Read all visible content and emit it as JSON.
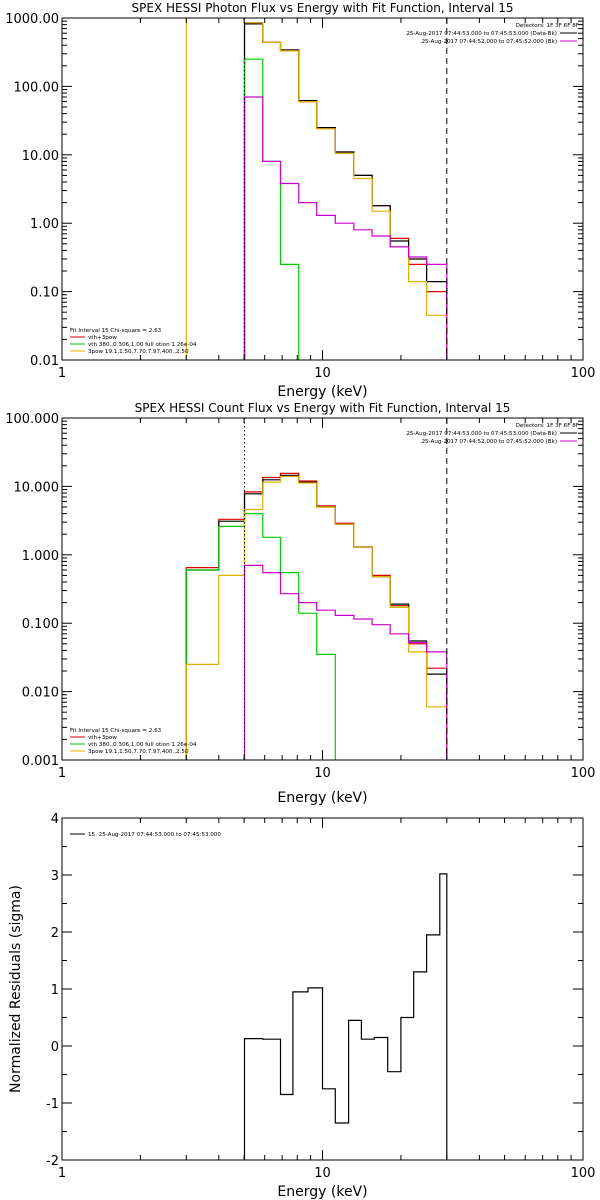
{
  "chart_data": [
    {
      "type": "line",
      "title": "SPEX HESSI Photon Flux vs Energy with Fit Function, Interval 15",
      "xlabel": "Energy (keV)",
      "ylabel": "",
      "xscale": "log",
      "yscale": "log",
      "xlim": [
        1,
        100
      ],
      "ylim": [
        0.01,
        1000
      ],
      "xticks": [
        {
          "v": 1,
          "label": "1"
        },
        {
          "v": 10,
          "label": "10"
        },
        {
          "v": 100,
          "label": "100"
        }
      ],
      "yticks": [
        {
          "v": 1000,
          "label": "1000.00"
        },
        {
          "v": 100,
          "label": "100.00"
        },
        {
          "v": 10,
          "label": "10.00"
        },
        {
          "v": 1,
          "label": "1.00"
        },
        {
          "v": 0.1,
          "label": "0.10"
        },
        {
          "v": 0.01,
          "label": "0.01"
        }
      ],
      "vlines": [
        {
          "x": 5.02,
          "style": "dotted",
          "color": "#000000"
        },
        {
          "x": 30,
          "style": "dashed",
          "color": "#000000"
        }
      ],
      "header": [
        {
          "text": "Detectors: 1F 3F 6F 8F",
          "color": "#000000",
          "sample": false
        },
        {
          "text": "25-Aug-2017 07:44:53.000 to 07:45:53.000 (Data-Bk)",
          "color": "#000000",
          "sample": true
        },
        {
          "text": "25-Aug-2017 07:44:52.000 to 07:45:52.000 (Bk)",
          "color": "#cc00cc",
          "sample": true
        }
      ],
      "legend": [
        {
          "text": "Fit Interval 15   Chi-square = 2.63",
          "color": "#000000",
          "sample": false
        },
        {
          "text": "vth+3pow",
          "color": "#e00000",
          "sample": true
        },
        {
          "text": "vth 380.,0.306,1.00  full otion 1.26e-04",
          "color": "#00cc00",
          "sample": true
        },
        {
          "text": "3pow 19.1,1.50,7.70,7.97,400.,2.50",
          "color": "#e0b000",
          "sample": true
        }
      ],
      "series": [
        {
          "id": "vth-3pow-total",
          "color": "#e00000",
          "values": [
            [
              5.02,
              5.9,
              850
            ],
            [
              5.9,
              6.9,
              440
            ],
            [
              6.9,
              8.1,
              340
            ],
            [
              8.1,
              9.5,
              60
            ],
            [
              9.5,
              11.2,
              25
            ],
            [
              11.2,
              13.2,
              11
            ],
            [
              13.2,
              15.5,
              5
            ],
            [
              15.5,
              18.2,
              1.8
            ],
            [
              18.2,
              21.4,
              0.6
            ],
            [
              21.4,
              25.1,
              0.25
            ],
            [
              25.1,
              30,
              0.1
            ]
          ]
        },
        {
          "id": "data-minus-background",
          "color": "#000000",
          "values": [
            [
              5.02,
              5.9,
              820
            ],
            [
              5.9,
              6.9,
              440
            ],
            [
              6.9,
              8.1,
              340
            ],
            [
              8.1,
              9.5,
              62
            ],
            [
              9.5,
              11.2,
              25
            ],
            [
              11.2,
              13.2,
              11
            ],
            [
              13.2,
              15.5,
              5
            ],
            [
              15.5,
              18.2,
              1.8
            ],
            [
              18.2,
              21.4,
              0.55
            ],
            [
              21.4,
              25.1,
              0.3
            ],
            [
              25.1,
              30,
              0.14
            ],
            [
              30,
              30,
              0.065
            ]
          ]
        },
        {
          "id": "vth",
          "color": "#00cc00",
          "values": [
            [
              5.02,
              5.9,
              250
            ],
            [
              5.9,
              6.9,
              8
            ],
            [
              6.9,
              8.1,
              0.25
            ],
            [
              8.1,
              9.5,
              0.001
            ]
          ]
        },
        {
          "id": "3pow",
          "color": "#e0b000",
          "values": [
            [
              3,
              5.02,
              1200
            ],
            [
              5.02,
              5.9,
              850
            ],
            [
              5.9,
              6.9,
              440
            ],
            [
              6.9,
              8.1,
              330
            ],
            [
              8.1,
              9.5,
              60
            ],
            [
              9.5,
              11.2,
              24
            ],
            [
              11.2,
              13.2,
              10.5
            ],
            [
              13.2,
              15.5,
              4.5
            ],
            [
              15.5,
              18.2,
              1.5
            ],
            [
              18.2,
              21.4,
              0.45
            ],
            [
              21.4,
              25.1,
              0.14
            ],
            [
              25.1,
              30,
              0.045
            ],
            [
              30,
              30,
              0.012
            ]
          ]
        },
        {
          "id": "background",
          "color": "#cc00cc",
          "values": [
            [
              5.02,
              5.9,
              70
            ],
            [
              5.9,
              6.9,
              8
            ],
            [
              6.9,
              8.1,
              3.8
            ],
            [
              8.1,
              9.5,
              2
            ],
            [
              9.5,
              11.2,
              1.3
            ],
            [
              11.2,
              13.2,
              1.0
            ],
            [
              13.2,
              15.5,
              0.8
            ],
            [
              15.5,
              18.2,
              0.65
            ],
            [
              18.2,
              21.4,
              0.45
            ],
            [
              21.4,
              25.1,
              0.32
            ],
            [
              25.1,
              30,
              0.25
            ]
          ]
        }
      ]
    },
    {
      "type": "line",
      "title": "SPEX HESSI Count Flux vs Energy with Fit Function, Interval 15",
      "xlabel": "Energy (keV)",
      "ylabel": "",
      "xscale": "log",
      "yscale": "log",
      "xlim": [
        1,
        100
      ],
      "ylim": [
        0.001,
        100
      ],
      "xticks": [
        {
          "v": 1,
          "label": "1"
        },
        {
          "v": 10,
          "label": "10"
        },
        {
          "v": 100,
          "label": "100"
        }
      ],
      "yticks": [
        {
          "v": 100,
          "label": "100.000"
        },
        {
          "v": 10,
          "label": "10.000"
        },
        {
          "v": 1,
          "label": "1.000"
        },
        {
          "v": 0.1,
          "label": "0.100"
        },
        {
          "v": 0.01,
          "label": "0.010"
        },
        {
          "v": 0.001,
          "label": "0.001"
        }
      ],
      "vlines": [
        {
          "x": 5.02,
          "style": "dotted",
          "color": "#000000"
        },
        {
          "x": 30,
          "style": "dashed",
          "color": "#000000"
        }
      ],
      "header": [
        {
          "text": "Detectors: 1F 3F 6F 8F",
          "color": "#000000",
          "sample": false
        },
        {
          "text": "25-Aug-2017 07:44:53.000 to 07:45:53.000 (Data-Bk)",
          "color": "#000000",
          "sample": true
        },
        {
          "text": "25-Aug-2017 07:44:52.000 to 07:45:52.000 (Bk)",
          "color": "#cc00cc",
          "sample": true
        }
      ],
      "legend": [
        {
          "text": "Fit Interval 15   Chi-square = 2.63",
          "color": "#000000",
          "sample": false
        },
        {
          "text": "vth+3pow",
          "color": "#e00000",
          "sample": true
        },
        {
          "text": "vth 380.,0.306,1.00  full otion 1.26e-04",
          "color": "#00cc00",
          "sample": true
        },
        {
          "text": "3pow 19.1,1.50,7.70,7.97,400.,2.50",
          "color": "#e0b000",
          "sample": true
        }
      ],
      "series": [
        {
          "id": "vth-3pow-total",
          "color": "#e00000",
          "values": [
            [
              3,
              4,
              0.65
            ],
            [
              4,
              5.02,
              3.3
            ],
            [
              5.02,
              5.9,
              8.3
            ],
            [
              5.9,
              6.9,
              13.5
            ],
            [
              6.9,
              8.1,
              15.5
            ],
            [
              8.1,
              9.5,
              12
            ],
            [
              9.5,
              11.2,
              5.2
            ],
            [
              11.2,
              13.2,
              2.9
            ],
            [
              13.2,
              15.5,
              1.3
            ],
            [
              15.5,
              18.2,
              0.5
            ],
            [
              18.2,
              21.4,
              0.18
            ],
            [
              21.4,
              25.1,
              0.05
            ],
            [
              25.1,
              30,
              0.022
            ]
          ]
        },
        {
          "id": "data-minus-background",
          "color": "#000000",
          "values": [
            [
              3,
              4,
              0.6
            ],
            [
              4,
              5.02,
              3.1
            ],
            [
              5.02,
              5.9,
              7.8
            ],
            [
              5.9,
              6.9,
              12.5
            ],
            [
              6.9,
              8.1,
              14.5
            ],
            [
              8.1,
              9.5,
              11.5
            ],
            [
              9.5,
              11.2,
              5
            ],
            [
              11.2,
              13.2,
              2.8
            ],
            [
              13.2,
              15.5,
              1.3
            ],
            [
              15.5,
              18.2,
              0.48
            ],
            [
              18.2,
              21.4,
              0.19
            ],
            [
              21.4,
              25.1,
              0.055
            ],
            [
              25.1,
              30,
              0.018
            ],
            [
              30,
              30,
              0.009
            ]
          ]
        },
        {
          "id": "vth",
          "color": "#00cc00",
          "values": [
            [
              3,
              4,
              0.6
            ],
            [
              4,
              5.02,
              2.6
            ],
            [
              5.02,
              5.9,
              4
            ],
            [
              5.9,
              6.9,
              1.8
            ],
            [
              6.9,
              8.1,
              0.55
            ],
            [
              8.1,
              9.5,
              0.14
            ],
            [
              9.5,
              11.2,
              0.035
            ],
            [
              11.2,
              13.2,
              0.0008
            ]
          ]
        },
        {
          "id": "3pow",
          "color": "#e0b000",
          "values": [
            [
              3,
              4,
              0.025
            ],
            [
              4,
              5.02,
              0.5
            ],
            [
              5.02,
              5.9,
              4.6
            ],
            [
              5.9,
              6.9,
              11.5
            ],
            [
              6.9,
              8.1,
              14
            ],
            [
              8.1,
              9.5,
              11.2
            ],
            [
              9.5,
              11.2,
              5
            ],
            [
              11.2,
              13.2,
              2.8
            ],
            [
              13.2,
              15.5,
              1.3
            ],
            [
              15.5,
              18.2,
              0.48
            ],
            [
              18.2,
              21.4,
              0.17
            ],
            [
              21.4,
              25.1,
              0.038
            ],
            [
              25.1,
              30,
              0.006
            ],
            [
              30,
              30,
              0.0011
            ]
          ]
        },
        {
          "id": "background",
          "color": "#cc00cc",
          "values": [
            [
              5.02,
              5.9,
              0.7
            ],
            [
              5.9,
              6.9,
              0.55
            ],
            [
              6.9,
              8.1,
              0.27
            ],
            [
              8.1,
              9.5,
              0.2
            ],
            [
              9.5,
              11.2,
              0.155
            ],
            [
              11.2,
              13.2,
              0.13
            ],
            [
              13.2,
              15.5,
              0.115
            ],
            [
              15.5,
              18.2,
              0.095
            ],
            [
              18.2,
              21.4,
              0.07
            ],
            [
              21.4,
              25.1,
              0.052
            ],
            [
              25.1,
              30,
              0.038
            ],
            [
              30,
              30,
              0.03
            ]
          ]
        }
      ]
    },
    {
      "type": "line",
      "title": "",
      "xlabel": "Energy (keV)",
      "ylabel": "Normalized Residuals (sigma)",
      "xscale": "log",
      "yscale": "linear",
      "xlim": [
        1,
        100
      ],
      "ylim": [
        -2,
        4
      ],
      "xticks": [
        {
          "v": 1,
          "label": "1"
        },
        {
          "v": 10,
          "label": "10"
        },
        {
          "v": 100,
          "label": "100"
        }
      ],
      "yticks": [
        {
          "v": 4,
          "label": "4"
        },
        {
          "v": 3,
          "label": "3"
        },
        {
          "v": 2,
          "label": "2"
        },
        {
          "v": 1,
          "label": "1"
        },
        {
          "v": 0,
          "label": "0"
        },
        {
          "v": -1,
          "label": "-1"
        },
        {
          "v": -2,
          "label": "-2"
        }
      ],
      "header": [],
      "legend": [
        {
          "text": "15. 25-Aug-2017 07:44:53.000 to 07:45:53.000",
          "color": "#000000",
          "sample": true
        }
      ],
      "series": [
        {
          "id": "residuals",
          "color": "#000000",
          "values": [
            [
              5.02,
              5.9,
              0.13
            ],
            [
              5.9,
              6.9,
              0.12
            ],
            [
              6.9,
              7.7,
              -0.85
            ],
            [
              7.7,
              8.8,
              0.95
            ],
            [
              8.8,
              10,
              1.02
            ],
            [
              10,
              11.2,
              -0.75
            ],
            [
              11.2,
              12.6,
              -1.35
            ],
            [
              12.6,
              14.1,
              0.45
            ],
            [
              14.1,
              15.8,
              0.12
            ],
            [
              15.8,
              17.8,
              0.15
            ],
            [
              17.8,
              20,
              -0.45
            ],
            [
              20,
              22.4,
              0.5
            ],
            [
              22.4,
              25.1,
              1.3
            ],
            [
              25.1,
              28.2,
              1.95
            ],
            [
              28.2,
              30,
              3.02
            ],
            [
              30,
              30,
              2.25
            ]
          ]
        }
      ]
    }
  ]
}
